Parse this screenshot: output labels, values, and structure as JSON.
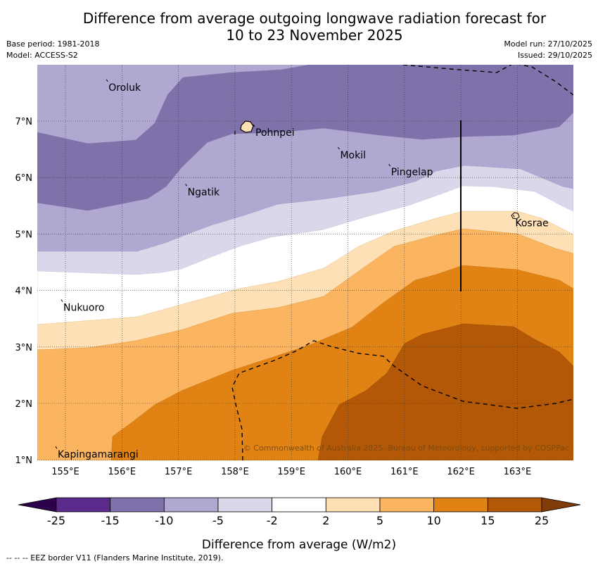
{
  "header": {
    "title_line1": "Difference from average outgoing longwave radiation forecast for",
    "title_line2": "10 to 23 November 2025",
    "base_period": "Base period: 1981-2018",
    "model": "Model: ACCESS-S2",
    "model_run": "Model run: 27/10/2025",
    "issued": "Issued: 29/10/2025"
  },
  "map": {
    "lon_ticks": [
      "155°E",
      "156°E",
      "157°E",
      "158°E",
      "159°E",
      "160°E",
      "161°E",
      "162°E",
      "163°E"
    ],
    "lat_ticks": [
      "1°N",
      "2°N",
      "3°N",
      "4°N",
      "5°N",
      "6°N",
      "7°N"
    ],
    "places": [
      {
        "name": "Oroluk",
        "lon": 155.75,
        "lat": 7.6
      },
      {
        "name": "Pohnpei",
        "lon": 158.35,
        "lat": 6.8
      },
      {
        "name": "Mokil",
        "lon": 159.85,
        "lat": 6.4
      },
      {
        "name": "Pingelap",
        "lon": 160.75,
        "lat": 6.1
      },
      {
        "name": "Ngatik",
        "lon": 157.15,
        "lat": 5.75
      },
      {
        "name": "Kosrae",
        "lon": 162.95,
        "lat": 5.2
      },
      {
        "name": "Nukuoro",
        "lon": 154.95,
        "lat": 3.7
      },
      {
        "name": "Kapingamarangi",
        "lon": 154.85,
        "lat": 1.1
      }
    ],
    "copyright": "© Commonwealth of Australia 2025, Bureau of Meteorology, supported by COSPPac"
  },
  "legend": {
    "ticks": [
      "-25",
      "-15",
      "-10",
      "-5",
      "-2",
      "2",
      "5",
      "10",
      "15",
      "25"
    ],
    "colors": [
      "#5a2a8c",
      "#7f72ab",
      "#b0a8d0",
      "#d9d8ea",
      "#ffffff",
      "#fde0b6",
      "#fbb460",
      "#e08314",
      "#b35806",
      "#7f3b08",
      "#2d004b"
    ],
    "label": "Difference from average (W/m2)"
  },
  "footnote": "--  --  -- EEZ border V11 (Flanders Marine Institute, 2019)."
}
